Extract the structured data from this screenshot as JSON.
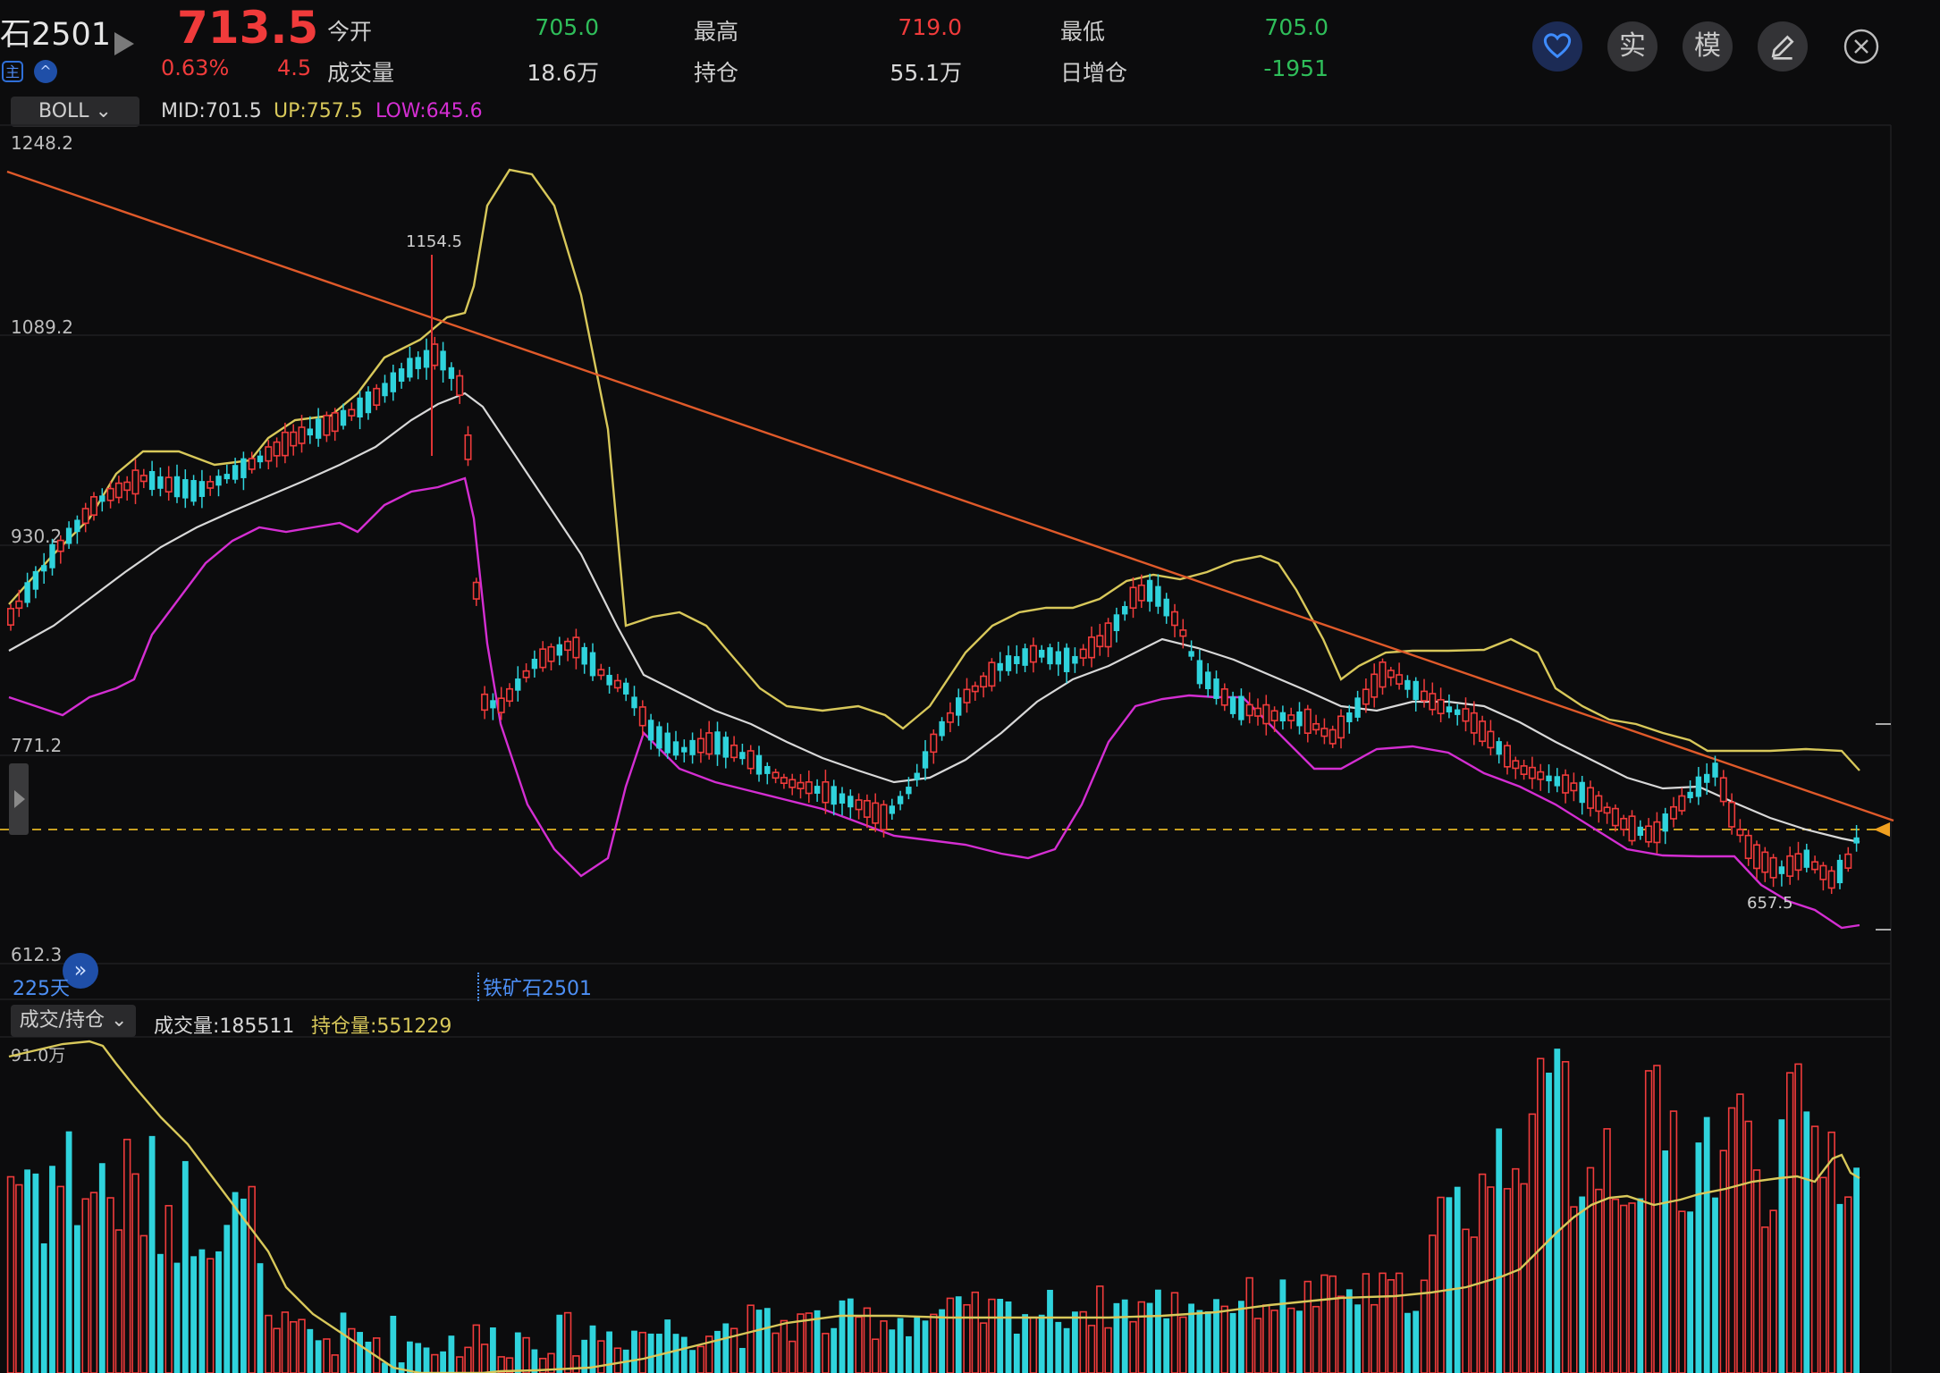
{
  "header": {
    "title": "石2501",
    "last_price": "713.5",
    "change_pct": "0.63%",
    "change_abs": "4.5",
    "open_label": "今开",
    "open_value": "705.0",
    "high_label": "最高",
    "high_value": "719.0",
    "low_label": "最低",
    "low_value": "705.0",
    "volume_label": "成交量",
    "volume_value": "18.6万",
    "position_label": "持仓",
    "position_value": "55.1万",
    "daily_pos_change_label": "日增仓",
    "daily_pos_change_value": "-1951",
    "mini_icon_1": "主",
    "mini_icon_2": "^"
  },
  "toolbar": {
    "favorite_icon": "heart-icon",
    "real_label": "实",
    "sim_label": "模",
    "edit_icon": "pencil-icon",
    "close_icon": "close-icon"
  },
  "indicator_bar": {
    "selector": "BOLL",
    "mid": "MID:701.5",
    "up": "UP:757.5",
    "low": "LOW:645.6"
  },
  "price_axis": [
    "1248.2",
    "1089.2",
    "930.2",
    "771.2",
    "612.3"
  ],
  "annotations": {
    "high_mark": "1154.5",
    "low_mark": "657.5",
    "days": "225天",
    "instrument": "铁矿石2501"
  },
  "volume_bar": {
    "selector": "成交/持仓",
    "volume": "成交量:185511",
    "open_interest": "持仓量:551229",
    "axis_top": "91.0万"
  },
  "colors": {
    "up": "#f03b3b",
    "down": "#2fd3dc",
    "boll_mid": "#d8d8d8",
    "boll_up": "#d8c85a",
    "boll_low": "#d42ed2",
    "trendline": "#e05a2a",
    "last_price_line": "#c8a020"
  }
}
